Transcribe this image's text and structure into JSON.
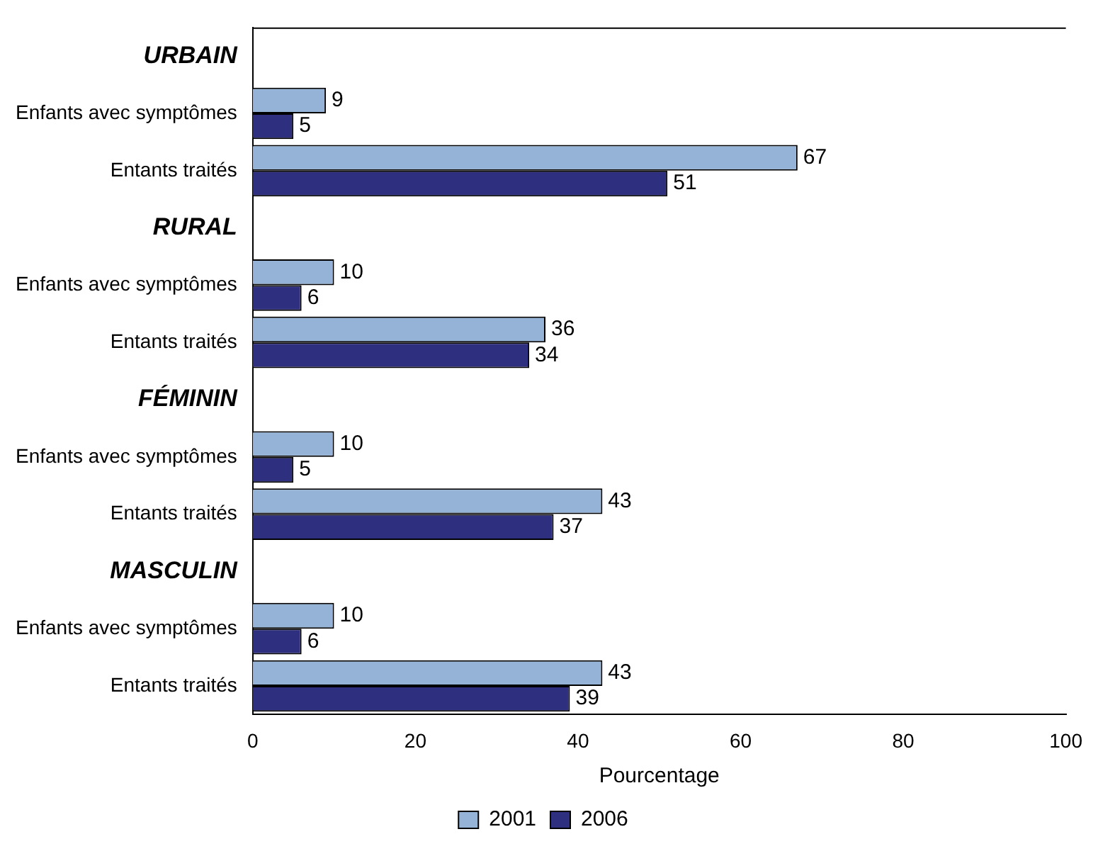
{
  "chart_data": {
    "type": "bar",
    "orientation": "horizontal",
    "xlabel": "Pourcentage",
    "categories": [
      "URBAIN",
      "Enfants avec symptômes",
      "Entants traités",
      "RURAL",
      "Enfants avec symptômes",
      "Entants traités",
      "FÉMININ",
      "Enfants avec symptômes",
      "Entants traités",
      "MASCULIN",
      "Enfants avec symptômes",
      "Entants traités"
    ],
    "series": [
      {
        "name": "2001",
        "color": "#95b3d7",
        "values": [
          null,
          9,
          67,
          null,
          10,
          36,
          null,
          10,
          43,
          null,
          10,
          43
        ]
      },
      {
        "name": "2006",
        "color": "#2e2f7f",
        "values": [
          null,
          5,
          51,
          null,
          6,
          34,
          null,
          5,
          37,
          null,
          6,
          39
        ]
      }
    ],
    "xlim": [
      0,
      100
    ],
    "xticks": [
      0,
      20,
      40,
      60,
      80,
      100
    ],
    "grid": false,
    "legend": "bottom",
    "data_labels": true
  }
}
